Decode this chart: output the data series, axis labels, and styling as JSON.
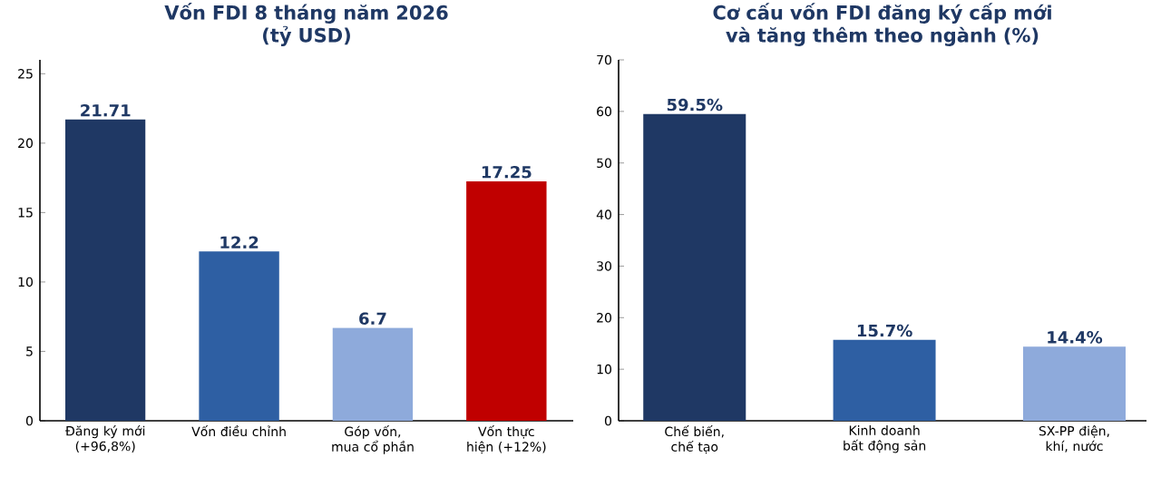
{
  "chart_data": [
    {
      "type": "bar",
      "title": "Vốn FDI 8 tháng năm 2026",
      "subtitle": "(tỷ USD)",
      "categories": [
        "Đăng ký mới (+96,8%)",
        "Vốn điều chỉnh",
        "Góp vốn, mua cổ phần",
        "Vốn thực hiện (+12%)"
      ],
      "values": [
        21.71,
        12.2,
        6.7,
        17.25
      ],
      "colors": [
        "#1f3864",
        "#2e5fa3",
        "#8eaadb",
        "#c00000"
      ],
      "ylim": [
        0,
        26
      ],
      "yticks": [
        0,
        5,
        10,
        15,
        20,
        25
      ],
      "data_labels": true
    },
    {
      "type": "bar",
      "title": "Cơ cấu vốn FDI đăng ký cấp mới và tăng thêm theo ngành (%)",
      "categories": [
        "Chế biến, chế tạo",
        "Kinh doanh bất động sản",
        "SX-PP điện, khí, nước"
      ],
      "values": [
        59.5,
        15.7,
        14.4
      ],
      "colors": [
        "#1f3864",
        "#2e5fa3",
        "#8eaadb"
      ],
      "value_labels": [
        "59.5%",
        "15.7%",
        "14.4%"
      ],
      "ylim": [
        0,
        70
      ],
      "yticks": [
        0,
        10,
        20,
        30,
        40,
        50,
        60,
        70
      ]
    }
  ]
}
